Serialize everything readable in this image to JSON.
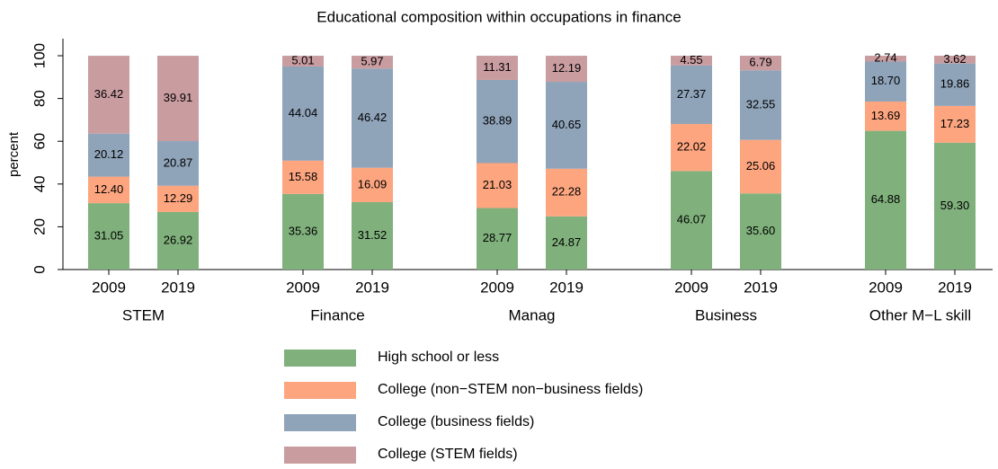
{
  "chart_data": {
    "type": "stacked_bar",
    "title": "Educational composition within occupations in finance",
    "y_label": "percent",
    "groups": [
      "STEM",
      "Finance",
      "Manag",
      "Business",
      "Other M−L skill"
    ],
    "categories": [
      "2009",
      "2019",
      "2009",
      "2019",
      "2009",
      "2019",
      "2009",
      "2019",
      "2009",
      "2019"
    ],
    "series": [
      {
        "name": "High school or less",
        "color": "#80b17c",
        "values": [
          31.05,
          26.92,
          35.36,
          31.52,
          28.77,
          24.87,
          46.07,
          35.6,
          64.88,
          59.3
        ],
        "value_labels": [
          "31.05",
          "26.92",
          "35.36",
          "31.52",
          "28.77",
          "24.87",
          "46.07",
          "35.60",
          "64.88",
          "59.30"
        ]
      },
      {
        "name": "College (non−STEM non−business fields)",
        "color": "#fca57f",
        "values": [
          12.4,
          12.29,
          15.58,
          16.09,
          21.03,
          22.28,
          22.02,
          25.06,
          13.69,
          17.23
        ],
        "value_labels": [
          "12.40",
          "12.29",
          "15.58",
          "16.09",
          "21.03",
          "22.28",
          "22.02",
          "25.06",
          "13.69",
          "17.23"
        ]
      },
      {
        "name": "College (business fields)",
        "color": "#8fa3b9",
        "values": [
          20.12,
          20.87,
          44.04,
          46.42,
          38.89,
          40.65,
          27.37,
          32.55,
          18.7,
          19.86
        ],
        "value_labels": [
          "20.12",
          "20.87",
          "44.04",
          "46.42",
          "38.89",
          "40.65",
          "27.37",
          "32.55",
          "18.70",
          "19.86"
        ]
      },
      {
        "name": "College (STEM fields)",
        "color": "#c99ca0",
        "values": [
          36.42,
          39.91,
          5.01,
          5.97,
          11.31,
          12.19,
          4.55,
          6.79,
          2.74,
          3.62
        ],
        "value_labels": [
          "36.42",
          "39.91",
          "5.01",
          "5.97",
          "11.31",
          "12.19",
          "4.55",
          "6.79",
          "2.74",
          "3.62"
        ]
      }
    ],
    "ylim": [
      0,
      108
    ],
    "yticks": [
      0,
      20,
      40,
      60,
      80,
      100
    ]
  }
}
